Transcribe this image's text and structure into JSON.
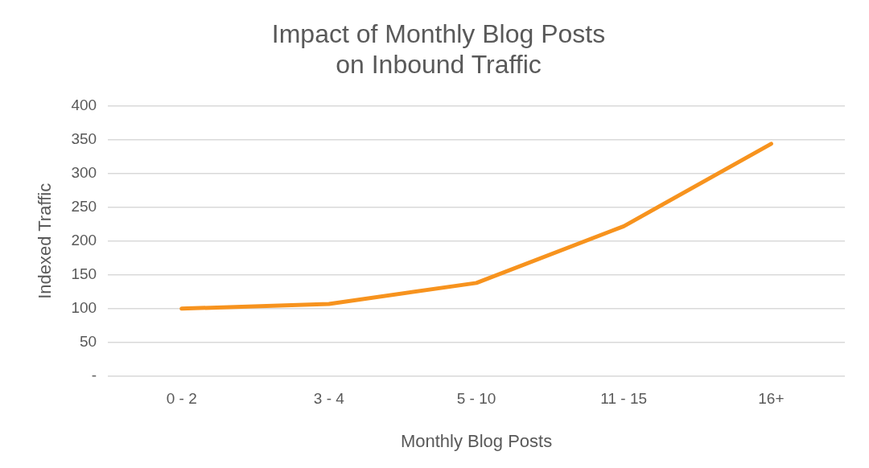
{
  "chart_data": {
    "type": "line",
    "title": "Impact of Monthly Blog Posts\non Inbound Traffic",
    "xlabel": "Monthly Blog Posts",
    "ylabel": "Indexed Traffic",
    "categories": [
      "0 - 2",
      "3 - 4",
      "5 - 10",
      "11 - 15",
      "16+"
    ],
    "series": [
      {
        "color": "#f7931e",
        "values": [
          100,
          107,
          138,
          222,
          344
        ]
      }
    ],
    "ylim": [
      0,
      400
    ],
    "yticks": [
      {
        "value": 0,
        "label": "-"
      },
      50,
      100,
      150,
      200,
      250,
      300,
      350,
      400
    ],
    "grid": "y",
    "legend": false,
    "marker": "none",
    "line_style": "solid"
  }
}
